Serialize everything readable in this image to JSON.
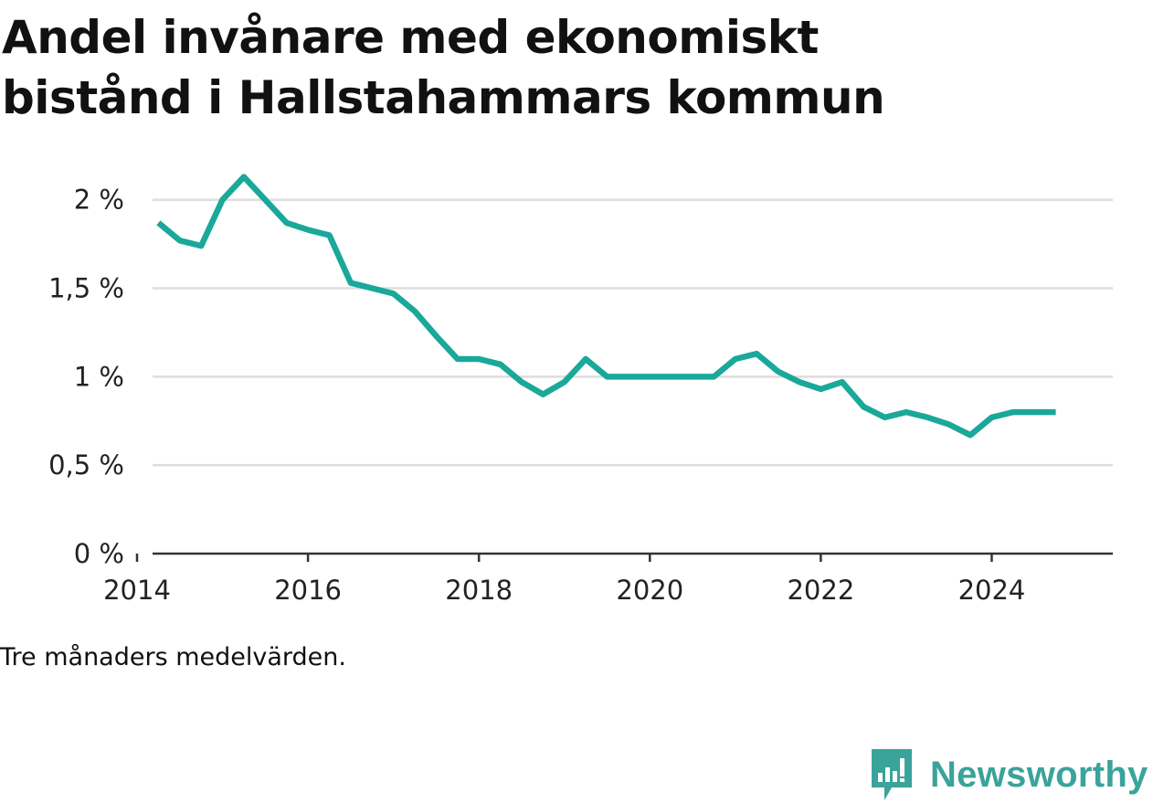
{
  "title_lines": [
    "Andel invånare med ekonomiskt",
    "bistånd i Hallstahammars kommun"
  ],
  "note": "Tre månaders medelvärden.",
  "brand": {
    "name": "Newsworthy",
    "logo_icon": "newsworthy-chat-bars-icon",
    "color": "#3aa39a"
  },
  "colors": {
    "line": "#1aa89a",
    "grid": "#dddddd",
    "axis": "#333333"
  },
  "chart_data": {
    "type": "line",
    "title": "Andel invånare med ekonomiskt bistånd i Hallstahammars kommun",
    "xlabel": "",
    "ylabel": "",
    "x_tick_labels": [
      "2014",
      "2016",
      "2018",
      "2020",
      "2022",
      "2024"
    ],
    "y_ticks": [
      0,
      0.5,
      1,
      1.5,
      2
    ],
    "y_tick_labels": [
      "0 %",
      "0,5 %",
      "1 %",
      "1,5 %",
      "2 %"
    ],
    "ylim": [
      0,
      2.2
    ],
    "xlim": [
      "2014-01",
      "2025-06"
    ],
    "grid": true,
    "series": [
      {
        "x": [
          "2014-04",
          "2014-07",
          "2014-10",
          "2015-01",
          "2015-04",
          "2015-07",
          "2015-10",
          "2016-01",
          "2016-04",
          "2016-07",
          "2016-10",
          "2017-01",
          "2017-04",
          "2017-07",
          "2017-10",
          "2018-01",
          "2018-04",
          "2018-07",
          "2018-10",
          "2019-01",
          "2019-04",
          "2019-07",
          "2019-10",
          "2020-01",
          "2020-04",
          "2020-07",
          "2020-10",
          "2021-01",
          "2021-04",
          "2021-07",
          "2021-10",
          "2022-01",
          "2022-04",
          "2022-07",
          "2022-10",
          "2023-01",
          "2023-04",
          "2023-07",
          "2023-10",
          "2024-01",
          "2024-04",
          "2024-07",
          "2024-10"
        ],
        "values": [
          1.87,
          1.77,
          1.74,
          2.0,
          2.13,
          2.0,
          1.87,
          1.83,
          1.8,
          1.53,
          1.5,
          1.47,
          1.37,
          1.23,
          1.1,
          1.1,
          1.07,
          0.97,
          0.9,
          0.97,
          1.1,
          1.0,
          1.0,
          1.0,
          1.0,
          1.0,
          1.0,
          1.1,
          1.13,
          1.03,
          0.97,
          0.93,
          0.97,
          0.83,
          0.77,
          0.8,
          0.77,
          0.73,
          0.67,
          0.77,
          0.8,
          0.8,
          0.8
        ]
      }
    ]
  }
}
